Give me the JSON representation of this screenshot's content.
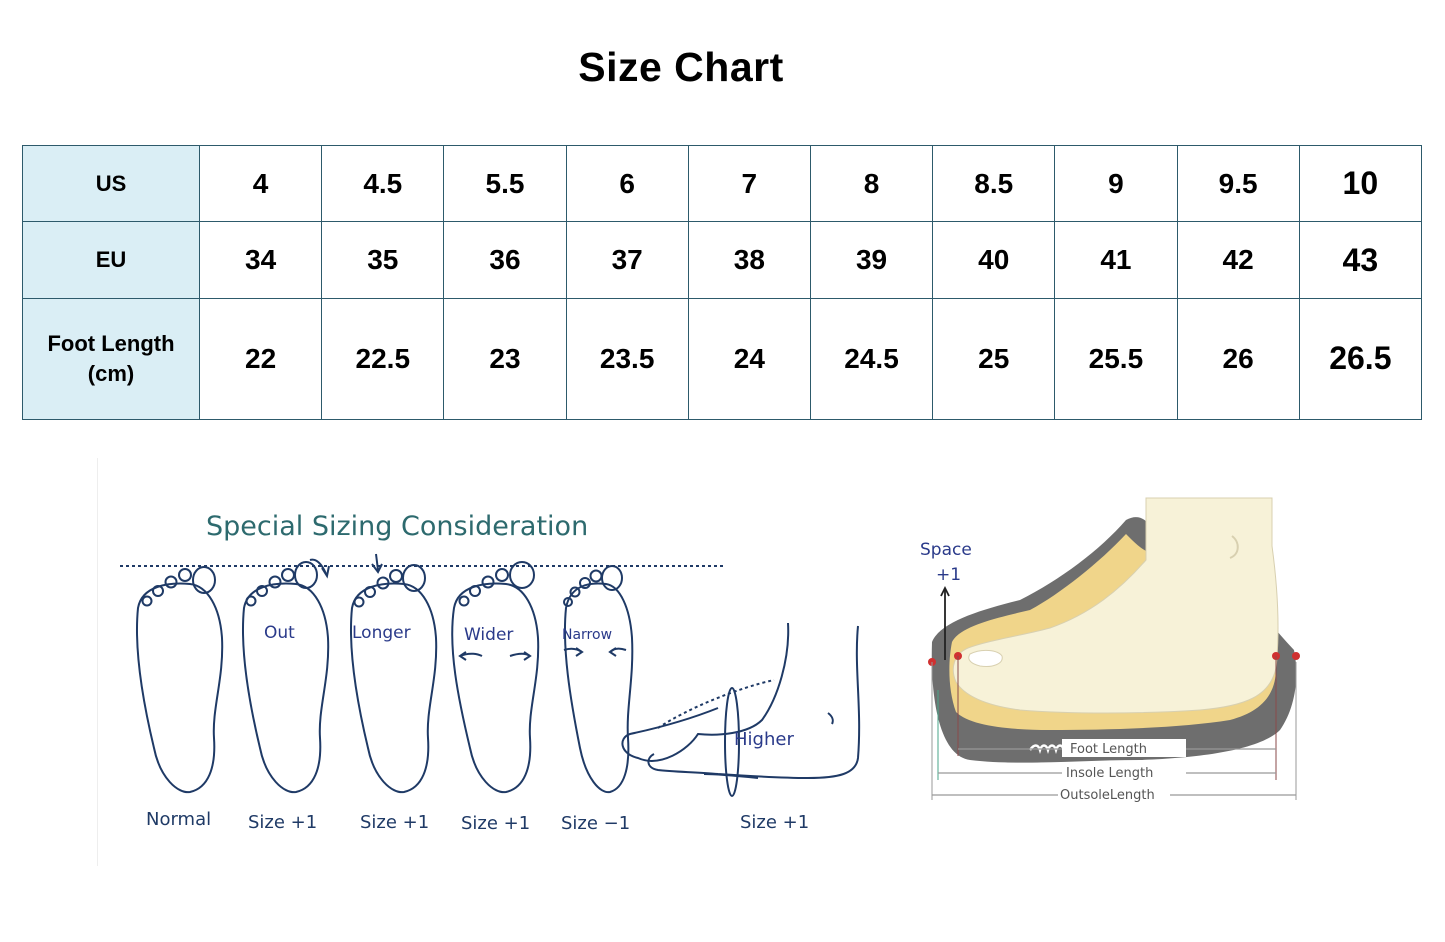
{
  "title": "Size Chart",
  "table": {
    "rows": [
      {
        "header": "US",
        "values": [
          "4",
          "4.5",
          "5.5",
          "6",
          "7",
          "8",
          "8.5",
          "9",
          "9.5",
          "10"
        ]
      },
      {
        "header": "EU",
        "values": [
          "34",
          "35",
          "36",
          "37",
          "38",
          "39",
          "40",
          "41",
          "42",
          "43"
        ]
      },
      {
        "header_line1": "Foot Length",
        "header_line2": "(cm)",
        "values": [
          "22",
          "22.5",
          "23",
          "23.5",
          "24",
          "24.5",
          "25",
          "25.5",
          "26",
          "26.5"
        ]
      }
    ]
  },
  "special": {
    "title": "Special Sizing Consideration",
    "feet": [
      {
        "inner": "",
        "caption": "Normal"
      },
      {
        "inner": "Out",
        "caption": "Size +1"
      },
      {
        "inner": "Longer",
        "caption": "Size +1"
      },
      {
        "inner": "Wider",
        "caption": "Size +1"
      },
      {
        "inner": "Narrow",
        "caption": "Size −1"
      }
    ],
    "side": {
      "inner": "Higher",
      "caption": "Size +1"
    }
  },
  "shoe": {
    "space_label": "Space",
    "space_value": "+1",
    "foot_length": "Foot Length",
    "insole_length": "Insole Length",
    "outsole_length": "OutsoleLength"
  },
  "colors": {
    "table_header_bg": "#daeef5",
    "table_border": "#2d5a6b",
    "sketch_ink": "#1f3a66",
    "special_title": "#2d6a6e",
    "space_label": "#2a3a8a",
    "sole": "#6e6e6e",
    "foot": "#f7f2d8",
    "insole": "#f0d58a"
  }
}
